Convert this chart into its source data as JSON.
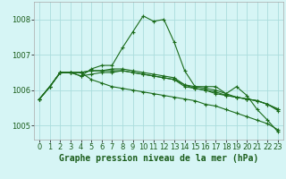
{
  "title": "Graphe pression niveau de la mer (hPa)",
  "bg_color": "#d6f5f5",
  "grid_color": "#aadddd",
  "line_color": "#1a6b1a",
  "ylim": [
    1004.6,
    1008.5
  ],
  "yticks": [
    1005,
    1006,
    1007,
    1008
  ],
  "xlim": [
    -0.5,
    23.5
  ],
  "xticks": [
    0,
    1,
    2,
    3,
    4,
    5,
    6,
    7,
    8,
    9,
    10,
    11,
    12,
    13,
    14,
    15,
    16,
    17,
    18,
    19,
    20,
    21,
    22,
    23
  ],
  "series": [
    [
      1005.75,
      1006.1,
      1006.5,
      1006.5,
      1006.4,
      1006.6,
      1006.7,
      1006.7,
      1007.2,
      1007.65,
      1008.1,
      1007.95,
      1008.0,
      1007.35,
      1006.55,
      1006.1,
      1006.1,
      1006.1,
      1005.9,
      1006.1,
      1005.85,
      1005.45,
      1005.15,
      1004.82
    ],
    [
      1005.75,
      1006.1,
      1006.5,
      1006.5,
      1006.4,
      1006.45,
      1006.5,
      1006.5,
      1006.55,
      1006.5,
      1006.45,
      1006.4,
      1006.35,
      1006.3,
      1006.1,
      1006.05,
      1006.0,
      1005.9,
      1005.85,
      1005.8,
      1005.75,
      1005.7,
      1005.6,
      1005.42
    ],
    [
      1005.75,
      1006.1,
      1006.5,
      1006.5,
      1006.5,
      1006.55,
      1006.55,
      1006.55,
      1006.55,
      1006.5,
      1006.45,
      1006.4,
      1006.35,
      1006.3,
      1006.15,
      1006.05,
      1006.0,
      1005.95,
      1005.85,
      1005.8,
      1005.75,
      1005.7,
      1005.6,
      1005.45
    ],
    [
      1005.75,
      1006.1,
      1006.5,
      1006.5,
      1006.5,
      1006.55,
      1006.55,
      1006.6,
      1006.6,
      1006.55,
      1006.5,
      1006.45,
      1006.4,
      1006.35,
      1006.15,
      1006.1,
      1006.05,
      1006.0,
      1005.9,
      1005.8,
      1005.75,
      1005.7,
      1005.6,
      1005.47
    ],
    [
      1005.75,
      1006.1,
      1006.5,
      1006.5,
      1006.5,
      1006.3,
      1006.2,
      1006.1,
      1006.05,
      1006.0,
      1005.95,
      1005.9,
      1005.85,
      1005.8,
      1005.75,
      1005.7,
      1005.6,
      1005.55,
      1005.45,
      1005.35,
      1005.25,
      1005.15,
      1005.05,
      1004.88
    ]
  ],
  "has_markers": [
    true,
    true,
    true,
    true,
    true
  ],
  "fontsize_label": 7.0,
  "fontsize_tick": 6.0
}
